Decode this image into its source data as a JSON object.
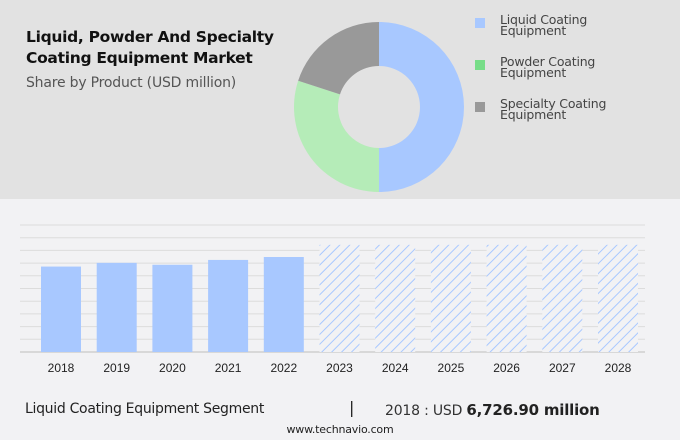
{
  "header": {
    "title_line1": "Liquid, Powder And Specialty",
    "title_line2": "Coating Equipment Market",
    "subtitle": "Share by Product (USD million)"
  },
  "chart_data": [
    {
      "type": "pie",
      "variant": "donut",
      "title": "Share by Product (USD million)",
      "legend_position": "right",
      "slices": [
        {
          "label": "Liquid Coating Equipment",
          "share_pct": 50,
          "color": "#a8c8ff"
        },
        {
          "label": "Powder Coating Equipment",
          "share_pct": 30,
          "color": "#b5ecb8"
        },
        {
          "label": "Specialty Coating Equipment",
          "share_pct": 20,
          "color": "#999999"
        }
      ],
      "legend": [
        {
          "line1": "Liquid Coating",
          "line2": "Equipment",
          "color": "#a8c8ff"
        },
        {
          "line1": "Powder Coating",
          "line2": "Equipment",
          "color": "#77dd88"
        },
        {
          "line1": "Specialty Coating",
          "line2": "Equipment",
          "color": "#999999"
        }
      ]
    },
    {
      "type": "bar",
      "title": "Liquid Coating Equipment Segment",
      "xlabel": "",
      "ylabel": "",
      "grid": true,
      "categories": [
        "2018",
        "2019",
        "2020",
        "2021",
        "2022",
        "2023",
        "2024",
        "2025",
        "2026",
        "2027",
        "2028"
      ],
      "values": [
        6726.9,
        7020,
        6870,
        7250,
        7480,
        8440,
        8440,
        8440,
        8440,
        8440,
        8440
      ],
      "forecast": [
        false,
        false,
        false,
        false,
        false,
        true,
        true,
        true,
        true,
        true,
        true
      ],
      "ylim": [
        0,
        10000
      ],
      "bar_color": "#a8c8ff",
      "forecast_hatch_color": "#a8c8ff"
    }
  ],
  "footer": {
    "segment_label": "Liquid Coating Equipment Segment",
    "separator": "|",
    "value_prefix": "2018 : USD ",
    "value_bold": "6,726.90 million",
    "url": "www.technavio.com"
  }
}
